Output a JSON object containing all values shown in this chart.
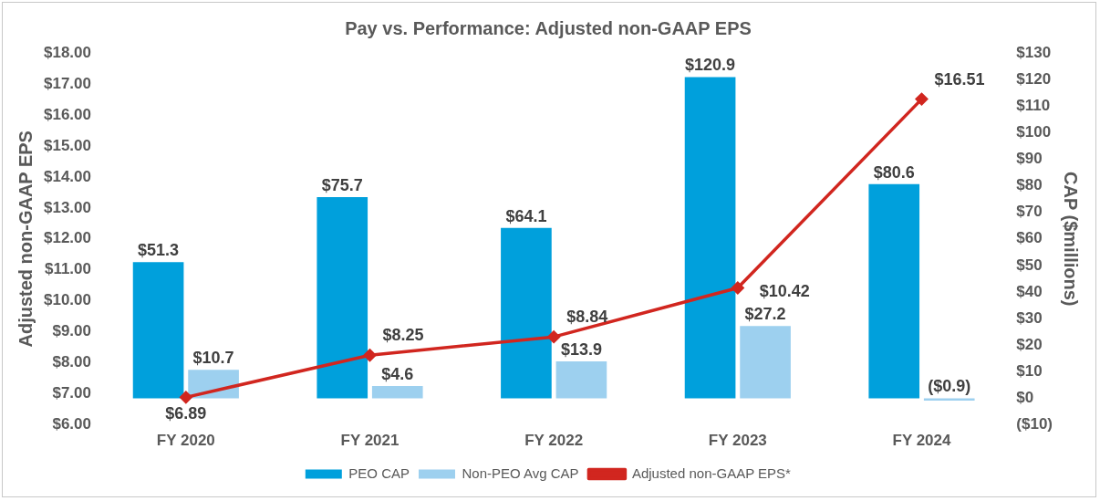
{
  "chart_data": {
    "type": "bar",
    "title": "Pay vs. Performance: Adjusted non-GAAP EPS",
    "categories": [
      "FY 2020",
      "FY 2021",
      "FY 2022",
      "FY 2023",
      "FY 2024"
    ],
    "series": [
      {
        "name": "PEO CAP",
        "axis": "y2",
        "color": "#00a0dc",
        "values": [
          51.3,
          75.7,
          64.1,
          120.9,
          80.6
        ],
        "value_labels": [
          "$51.3",
          "$75.7",
          "$64.1",
          "$120.9",
          "$80.6"
        ]
      },
      {
        "name": "Non-PEO Avg CAP",
        "axis": "y2",
        "color": "#9dd0ef",
        "values": [
          10.7,
          4.6,
          13.9,
          27.2,
          -0.9
        ],
        "value_labels": [
          "$10.7",
          "$4.6",
          "$13.9",
          "$27.2",
          "($0.9)"
        ]
      },
      {
        "name": "Adjusted non-GAAP EPS*",
        "type": "line",
        "axis": "y",
        "color": "#d1261f",
        "marker": "diamond",
        "line_style": "solid",
        "values": [
          6.89,
          8.25,
          8.84,
          10.42,
          16.51
        ],
        "value_labels": [
          "$6.89",
          "$8.25",
          "$8.84",
          "$10.42",
          "$16.51"
        ]
      }
    ],
    "ylabel": "Adjusted non-GAAP EPS",
    "y2label": "CAP ($millions)",
    "ylim": [
      6,
      18
    ],
    "yticks": [
      {
        "value": 6,
        "label": "$6.00"
      },
      {
        "value": 7,
        "label": "$7.00"
      },
      {
        "value": 8,
        "label": "$8.00"
      },
      {
        "value": 9,
        "label": "$9.00"
      },
      {
        "value": 10,
        "label": "$10.00"
      },
      {
        "value": 11,
        "label": "$11.00"
      },
      {
        "value": 12,
        "label": "$12.00"
      },
      {
        "value": 13,
        "label": "$13.00"
      },
      {
        "value": 14,
        "label": "$14.00"
      },
      {
        "value": 15,
        "label": "$15.00"
      },
      {
        "value": 16,
        "label": "$16.00"
      },
      {
        "value": 17,
        "label": "$17.00"
      },
      {
        "value": 18,
        "label": "$18.00"
      }
    ],
    "y2lim": [
      -10,
      130
    ],
    "y2ticks": [
      {
        "value": -10,
        "label": "($10)"
      },
      {
        "value": 0,
        "label": "$0"
      },
      {
        "value": 10,
        "label": "$10"
      },
      {
        "value": 20,
        "label": "$20"
      },
      {
        "value": 30,
        "label": "$30"
      },
      {
        "value": 40,
        "label": "$40"
      },
      {
        "value": 50,
        "label": "$50"
      },
      {
        "value": 60,
        "label": "$60"
      },
      {
        "value": 70,
        "label": "$70"
      },
      {
        "value": 80,
        "label": "$80"
      },
      {
        "value": 90,
        "label": "$90"
      },
      {
        "value": 100,
        "label": "$100"
      },
      {
        "value": 110,
        "label": "$110"
      },
      {
        "value": 120,
        "label": "$120"
      },
      {
        "value": 130,
        "label": "$130"
      }
    ],
    "grid": false,
    "legend": "bottom"
  }
}
